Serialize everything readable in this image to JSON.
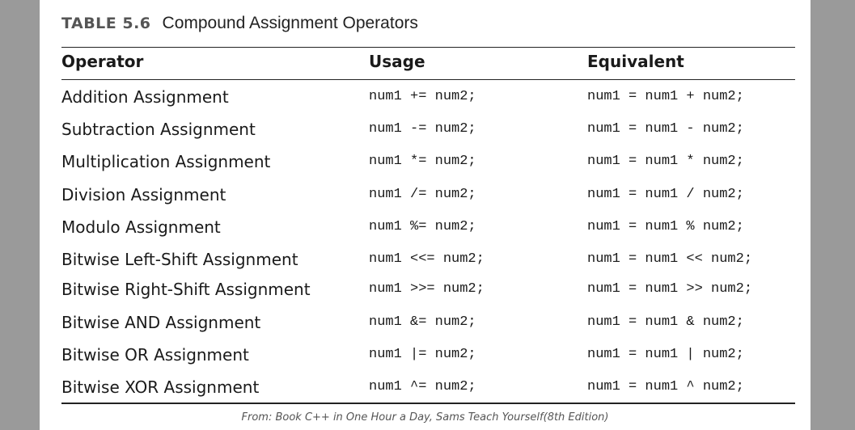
{
  "caption": {
    "number": "TABLE 5.6",
    "title": "Compound Assignment Operators"
  },
  "headers": {
    "operator": "Operator",
    "usage": "Usage",
    "equivalent": "Equivalent"
  },
  "rows": [
    {
      "operator": "Addition Assignment",
      "usage": "num1 += num2;",
      "equivalent": "num1 = num1 + num2;"
    },
    {
      "operator": "Subtraction Assignment",
      "usage": "num1 -= num2;",
      "equivalent": "num1 = num1 - num2;"
    },
    {
      "operator": "Multiplication Assignment",
      "usage": "num1 *= num2;",
      "equivalent": "num1 = num1 * num2;"
    },
    {
      "operator": "Division Assignment",
      "usage": "num1 /= num2;",
      "equivalent": "num1 = num1 / num2;"
    },
    {
      "operator": "Modulo Assignment",
      "usage": "num1 %= num2;",
      "equivalent": "num1 = num1 % num2;"
    },
    {
      "operator": "Bitwise Left-Shift Assignment",
      "usage": "num1 <<= num2;",
      "equivalent": "num1 = num1 << num2;"
    },
    {
      "operator": "Bitwise Right-Shift Assignment",
      "usage": "num1 >>= num2;",
      "equivalent": "num1 = num1 >> num2;"
    },
    {
      "operator": "Bitwise AND Assignment",
      "usage": "num1 &= num2;",
      "equivalent": "num1 = num1 & num2;"
    },
    {
      "operator": "Bitwise OR Assignment",
      "usage": "num1 |= num2;",
      "equivalent": "num1 = num1 | num2;"
    },
    {
      "operator": "Bitwise XOR Assignment",
      "usage": "num1 ^= num2;",
      "equivalent": "num1 = num1 ^ num2;"
    }
  ],
  "source": "From: Book C++ in One Hour a Day, Sams Teach Yourself(8th Edition)"
}
